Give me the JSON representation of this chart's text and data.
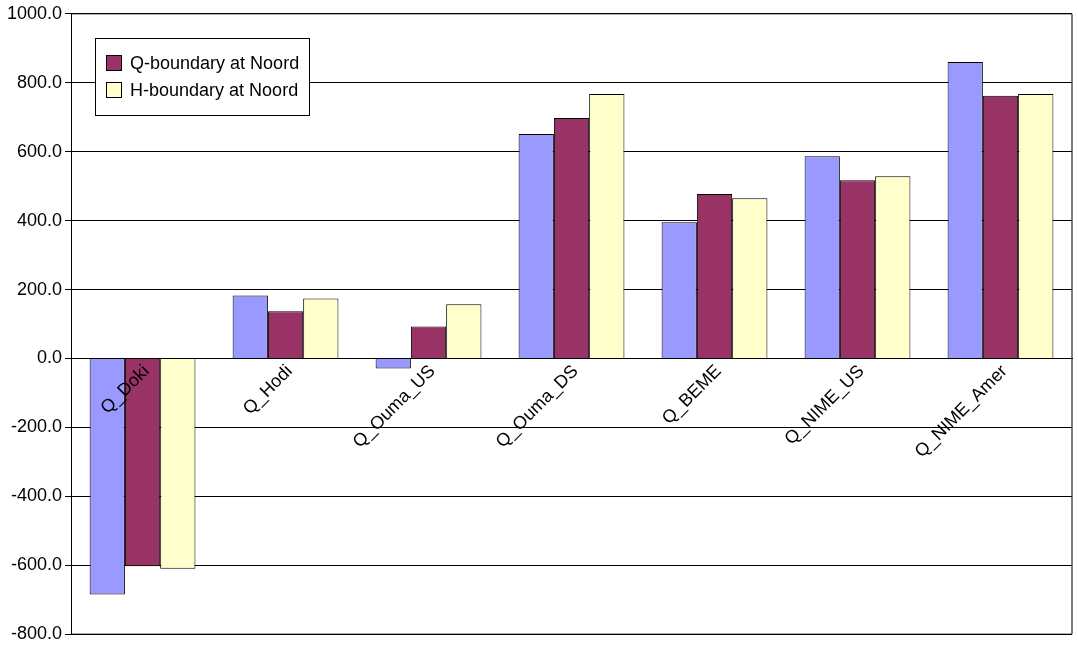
{
  "chart_data": {
    "type": "bar",
    "categories": [
      "Q_Doki",
      "Q_Hodi",
      "Q_Ouma_US",
      "Q_Ouma_DS",
      "Q_BEME",
      "Q_NIME_US",
      "Q_NIME_Amer"
    ],
    "series": [
      {
        "color": "#9999ff",
        "values": [
          -685,
          183,
          -29,
          651,
          395,
          587,
          860
        ]
      },
      {
        "name": "Q-boundary at Noord",
        "color": "#993366",
        "values": [
          -603,
          137,
          93,
          698,
          477,
          517,
          762
        ]
      },
      {
        "name": "H-boundary at Noord",
        "color": "#ffffcc",
        "values": [
          -610,
          174,
          157,
          767,
          465,
          529,
          767
        ]
      }
    ],
    "ylim": [
      -800,
      1000
    ],
    "yticks": [
      {
        "value": -800,
        "label": "-800.0"
      },
      {
        "value": -600,
        "label": "-600.0"
      },
      {
        "value": -400,
        "label": "-400.0"
      },
      {
        "value": -200,
        "label": "-200.0"
      },
      {
        "value": 0,
        "label": "0.0"
      },
      {
        "value": 200,
        "label": "200.0"
      },
      {
        "value": 400,
        "label": "400.0"
      },
      {
        "value": 600,
        "label": "600.0"
      },
      {
        "value": 800,
        "label": "800.0"
      },
      {
        "value": 1000,
        "label": "1000.0"
      }
    ],
    "grid": "y",
    "legend": "top left"
  }
}
